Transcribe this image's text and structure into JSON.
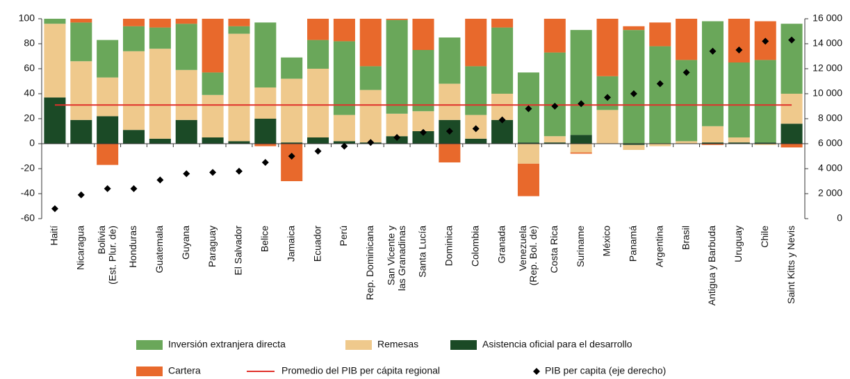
{
  "chart_data": {
    "type": "bar",
    "categories": [
      "Haití",
      "Nicaragua",
      "Bolivia\n(Est. Plur. de)",
      "Honduras",
      "Guatemala",
      "Guyana",
      "Paraguay",
      "El Salvador",
      "Belice",
      "Jamaica",
      "Ecuador",
      "Perú",
      "Rep. Dominicana",
      "San Vicente y\nlas Granadinas",
      "Santa Lucía",
      "Dominica",
      "Colombia",
      "Granada",
      "Venezuela\n(Rep. Bol. de)",
      "Costa Rica",
      "Suriname",
      "México",
      "Panamá",
      "Argentina",
      "Brasil",
      "Antigua y Barbuda",
      "Uruguay",
      "Chile",
      "Saint Kitts y Nevis"
    ],
    "series": [
      {
        "name": "Asistencia oficial para el desarrollo",
        "color": "#1b4a26",
        "values": [
          37,
          19,
          22,
          11,
          4,
          19,
          5,
          2,
          20,
          1,
          5,
          2,
          1,
          6,
          10,
          19,
          4,
          19,
          1,
          1,
          7,
          0,
          -1,
          0,
          0,
          1,
          1,
          1,
          16
        ]
      },
      {
        "name": "Remesas",
        "color": "#efc98c",
        "values": [
          59,
          47,
          31,
          63,
          72,
          40,
          34,
          86,
          25,
          51,
          55,
          21,
          42,
          18,
          16,
          29,
          19,
          21,
          -16,
          5,
          -7,
          27,
          -4,
          -2,
          2,
          13,
          4,
          -1,
          24
        ]
      },
      {
        "name": "Inversión extranjera directa",
        "color": "#6aa75a",
        "values": [
          4,
          31,
          30,
          20,
          17,
          37,
          18,
          6,
          52,
          17,
          23,
          59,
          19,
          75,
          49,
          37,
          39,
          53,
          56,
          67,
          84,
          27,
          91,
          78,
          65,
          84,
          60,
          66,
          56
        ]
      },
      {
        "name": "Cartera",
        "color": "#e8692c",
        "values": [
          0,
          3,
          -17,
          6,
          7,
          4,
          43,
          6,
          -2,
          -30,
          17,
          18,
          38,
          1,
          25,
          -15,
          38,
          7,
          -26,
          27,
          -1,
          46,
          3,
          19,
          33,
          -1,
          35,
          31,
          -3
        ]
      },
      {
        "name": "Promedio del PIB per cápita regional",
        "type": "line",
        "axis": "y2",
        "color": "#e0302a",
        "values": [
          9100,
          9100,
          9100,
          9100,
          9100,
          9100,
          9100,
          9100,
          9100,
          9100,
          9100,
          9100,
          9100,
          9100,
          9100,
          9100,
          9100,
          9100,
          9100,
          9100,
          9100,
          9100,
          9100,
          9100,
          9100,
          9100,
          9100,
          9100,
          9100
        ]
      },
      {
        "name": "PIB per capita (eje derecho)",
        "type": "scatter",
        "axis": "y2",
        "color": "#000000",
        "values": [
          800,
          1900,
          2400,
          2400,
          3100,
          3600,
          3700,
          3800,
          4500,
          5000,
          5400,
          5800,
          6100,
          6500,
          6900,
          7000,
          7200,
          7900,
          8800,
          9000,
          9200,
          9700,
          10000,
          10800,
          11700,
          13400,
          13500,
          14200,
          14300
        ]
      }
    ],
    "ylim": [
      -60,
      100
    ],
    "yticks": [
      -60,
      -40,
      -20,
      0,
      20,
      40,
      60,
      80,
      100
    ],
    "y2lim": [
      0,
      16000
    ],
    "y2ticks": [
      0,
      {
        "value": 2000,
        "label": "2 000"
      },
      {
        "value": 4000,
        "label": "4 000"
      },
      {
        "value": 6000,
        "label": "6 000"
      },
      {
        "value": 8000,
        "label": "8 000"
      },
      {
        "value": 10000,
        "label": "10 000"
      },
      {
        "value": 12000,
        "label": "12 000"
      },
      {
        "value": 14000,
        "label": "14 000"
      },
      {
        "value": 16000,
        "label": "16 000"
      }
    ]
  }
}
